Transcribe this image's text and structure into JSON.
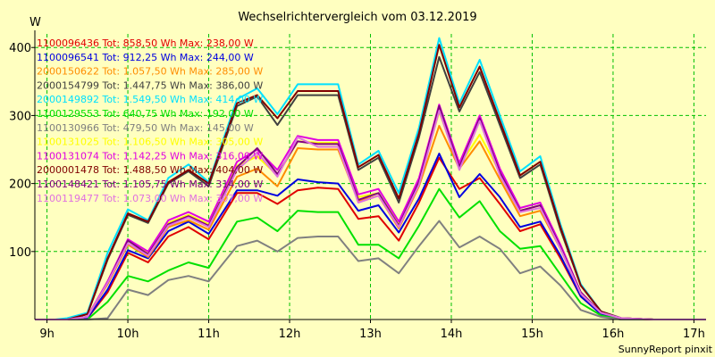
{
  "chart_data": {
    "type": "line",
    "title": "Wechselrichtervergleich vom 03.12.2019",
    "ylabel": "W",
    "xlabel": "",
    "footer": "SunnyReport pinxit",
    "ylim": [
      0,
      420
    ],
    "yticks": [
      100,
      200,
      300,
      400
    ],
    "xlim": [
      8.85,
      17.15
    ],
    "xticks": [
      9,
      10,
      11,
      12,
      13,
      14,
      15,
      16,
      17
    ],
    "xtick_labels": [
      "9h",
      "10h",
      "11h",
      "12h",
      "13h",
      "14h",
      "15h",
      "16h",
      "17h"
    ],
    "grid": true,
    "legend_position": "top-left",
    "x": [
      8.85,
      9.1,
      9.25,
      9.5,
      9.75,
      10.0,
      10.25,
      10.5,
      10.75,
      11.0,
      11.35,
      11.6,
      11.85,
      12.1,
      12.35,
      12.6,
      12.85,
      13.1,
      13.35,
      13.6,
      13.85,
      14.1,
      14.35,
      14.6,
      14.85,
      15.1,
      15.35,
      15.6,
      15.85,
      16.1,
      16.5,
      17.15
    ],
    "series": [
      {
        "name": "1100096436",
        "legend": "1100096436 Tot: 858,50 Wh Max: 238,00 W",
        "color": "#e00000",
        "values": [
          0,
          0,
          0,
          2,
          40,
          98,
          84,
          122,
          136,
          118,
          186,
          186,
          170,
          190,
          194,
          192,
          148,
          152,
          116,
          172,
          238,
          192,
          208,
          170,
          130,
          140,
          90,
          34,
          8,
          2,
          0,
          0
        ]
      },
      {
        "name": "1100096541",
        "legend": "1100096541 Tot: 912,25 Wh Max: 244,00 W",
        "color": "#0000e0",
        "values": [
          0,
          0,
          0,
          2,
          44,
          102,
          90,
          130,
          144,
          126,
          190,
          190,
          182,
          206,
          202,
          200,
          160,
          168,
          128,
          178,
          244,
          180,
          214,
          180,
          136,
          144,
          94,
          34,
          8,
          2,
          0,
          0
        ]
      },
      {
        "name": "2000150622",
        "legend": "2000150622 Tot: 1.057,50 Wh Max: 285,00 W",
        "color": "#ff8c00",
        "values": [
          0,
          0,
          0,
          4,
          52,
          110,
          92,
          136,
          146,
          132,
          210,
          222,
          196,
          252,
          250,
          250,
          174,
          182,
          134,
          196,
          285,
          222,
          262,
          206,
          152,
          160,
          104,
          38,
          10,
          2,
          0,
          0
        ]
      },
      {
        "name": "2000154799",
        "legend": "2000154799 Tot: 1.447,75 Wh Max: 386,00 W",
        "color": "#404040",
        "values": [
          0,
          0,
          0,
          8,
          88,
          154,
          142,
          200,
          218,
          196,
          314,
          328,
          286,
          330,
          330,
          330,
          220,
          238,
          172,
          268,
          386,
          306,
          364,
          286,
          208,
          228,
          132,
          50,
          12,
          2,
          0,
          0
        ]
      },
      {
        "name": "2000149892",
        "legend": "2000149892 Tot: 1.549,50 Wh Max: 414,00 W",
        "color": "#00e0ff",
        "values": [
          0,
          0,
          2,
          10,
          98,
          162,
          146,
          208,
          228,
          202,
          324,
          340,
          302,
          346,
          346,
          346,
          228,
          248,
          186,
          282,
          414,
          318,
          382,
          300,
          218,
          240,
          140,
          52,
          12,
          2,
          0,
          0
        ]
      },
      {
        "name": "1100129553",
        "legend": "1100129553 Tot: 640,75 Wh Max: 192,00 W",
        "color": "#00e000",
        "values": [
          0,
          0,
          0,
          0,
          26,
          64,
          56,
          72,
          84,
          76,
          144,
          150,
          130,
          160,
          158,
          158,
          110,
          110,
          90,
          138,
          192,
          150,
          174,
          130,
          104,
          108,
          66,
          24,
          6,
          0,
          0,
          0
        ]
      },
      {
        "name": "1100130966",
        "legend": "1100130966 Tot: 479,50 Wh Max: 145,00 W",
        "color": "#808080",
        "values": [
          0,
          0,
          0,
          0,
          2,
          44,
          36,
          58,
          64,
          56,
          108,
          116,
          100,
          120,
          122,
          122,
          86,
          90,
          68,
          108,
          145,
          106,
          122,
          104,
          68,
          78,
          50,
          14,
          4,
          0,
          0,
          0
        ]
      },
      {
        "name": "1100131025",
        "legend": "1100131025 Tot: 1.106,50 Wh Max: 305,00 W",
        "color": "#ffff00",
        "values": [
          0,
          0,
          0,
          4,
          56,
          116,
          98,
          142,
          154,
          140,
          226,
          240,
          212,
          262,
          260,
          260,
          180,
          186,
          140,
          204,
          305,
          226,
          272,
          216,
          160,
          168,
          108,
          40,
          10,
          2,
          0,
          0
        ]
      },
      {
        "name": "1100131074",
        "legend": "1100131074 Tot: 1.142,25 Wh Max: 316,00 W",
        "color": "#e000e0",
        "values": [
          0,
          0,
          0,
          4,
          56,
          118,
          100,
          146,
          158,
          144,
          232,
          250,
          220,
          270,
          264,
          264,
          184,
          192,
          144,
          208,
          316,
          230,
          300,
          222,
          164,
          172,
          110,
          40,
          10,
          2,
          0,
          0
        ]
      },
      {
        "name": "2000001478",
        "legend": "2000001478 Tot: 1.488,50 Wh Max: 404,00 W",
        "color": "#800000",
        "values": [
          0,
          0,
          0,
          8,
          90,
          156,
          144,
          202,
          220,
          200,
          318,
          330,
          296,
          336,
          336,
          336,
          224,
          242,
          178,
          274,
          404,
          312,
          372,
          292,
          212,
          232,
          136,
          50,
          12,
          2,
          0,
          0
        ]
      },
      {
        "name": "1100148421",
        "legend": "1100148421 Tot: 1.105,75 Wh Max: 314,00 W",
        "color": "#800080",
        "values": [
          0,
          0,
          0,
          4,
          54,
          116,
          96,
          140,
          152,
          138,
          224,
          252,
          214,
          262,
          258,
          258,
          176,
          186,
          138,
          202,
          314,
          224,
          296,
          216,
          160,
          168,
          106,
          40,
          10,
          2,
          0,
          0
        ]
      },
      {
        "name": "1100119477",
        "legend": "1100119477 Tot: 1.073,00 Wh Max: 307,00 W",
        "color": "#e070e0",
        "values": [
          0,
          0,
          0,
          4,
          54,
          112,
          94,
          138,
          150,
          136,
          220,
          246,
          210,
          268,
          254,
          254,
          172,
          182,
          136,
          198,
          307,
          220,
          292,
          212,
          158,
          164,
          104,
          38,
          10,
          2,
          0,
          0
        ]
      }
    ]
  }
}
